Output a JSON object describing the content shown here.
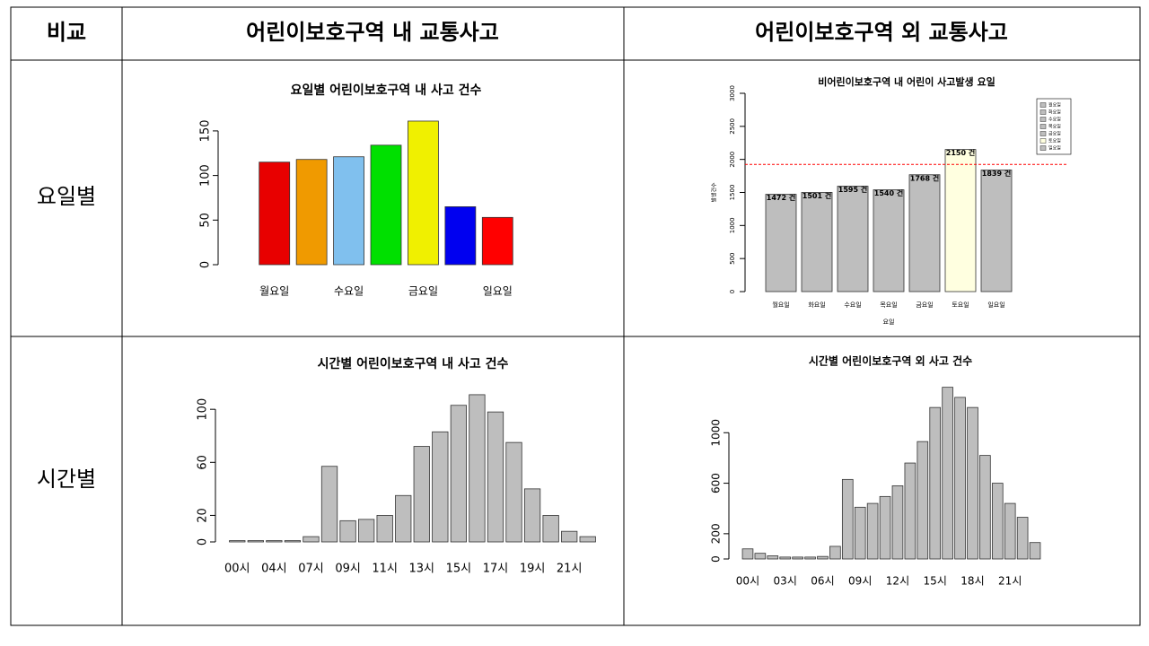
{
  "table": {
    "header": [
      "비교",
      "어린이보호구역 내 교통사고",
      "어린이보호구역 외 교통사고"
    ],
    "rows": [
      "요일별",
      "시간별"
    ]
  },
  "chart_data": [
    {
      "type": "bar",
      "title": "요일별 어린이보호구역 내 사고 건수",
      "categories": [
        "월요일",
        null,
        "수요일",
        null,
        "금요일",
        null,
        "일요일"
      ],
      "values": [
        115,
        118,
        121,
        134,
        161,
        65,
        53
      ],
      "colors": [
        "#e80000",
        "#f09a00",
        "#80c0ee",
        "#00e000",
        "#f0f000",
        "#0000f0",
        "#ff0000"
      ],
      "ylim": [
        0,
        165
      ],
      "yticks": [
        0,
        50,
        100,
        150
      ]
    },
    {
      "type": "bar",
      "title": "비어린이보호구역 내 어린이 사고발생 요일",
      "categories": [
        "월요일",
        "화요일",
        "수요일",
        "목요일",
        "금요일",
        "토요일",
        "일요일"
      ],
      "values": [
        1472,
        1501,
        1595,
        1540,
        1768,
        2150,
        1839
      ],
      "value_labels": [
        "1472 건",
        "1501 건",
        "1595 건",
        "1540 건",
        "1768 건",
        "2150 건",
        "1839 건"
      ],
      "colors": [
        "#bebebe",
        "#bebebe",
        "#bebebe",
        "#bebebe",
        "#bebebe",
        "#ffffe0",
        "#bebebe"
      ],
      "x_label": "요일",
      "y_label": "발생건수",
      "reference_line": {
        "value": 1925,
        "color": "#ff0000"
      },
      "legend": "topright",
      "ylim": [
        0,
        3000
      ],
      "yticks": [
        0,
        500,
        1000,
        1500,
        2000,
        2500,
        3000
      ]
    },
    {
      "type": "bar",
      "title": "시간별 어린이보호구역 내 사고 건수",
      "categories": [
        "00시",
        null,
        "04시",
        null,
        "07시",
        null,
        "09시",
        null,
        "11시",
        null,
        "13시",
        null,
        "15시",
        null,
        "17시",
        null,
        "19시",
        null,
        "21시",
        null
      ],
      "values": [
        1,
        1,
        1,
        1,
        4,
        57,
        16,
        17,
        20,
        35,
        72,
        83,
        103,
        111,
        98,
        75,
        40,
        20,
        8,
        4
      ],
      "color": "#bebebe",
      "ylim": [
        0,
        115
      ],
      "yticks": [
        0,
        20,
        60,
        100
      ]
    },
    {
      "type": "bar",
      "title": "시간별 어린이보호구역 외 사고 건수",
      "categories": [
        "00시",
        null,
        null,
        "03시",
        null,
        null,
        "06시",
        null,
        null,
        "09시",
        null,
        null,
        "12시",
        null,
        null,
        "15시",
        null,
        null,
        "18시",
        null,
        null,
        "21시",
        null,
        null
      ],
      "values": [
        80,
        45,
        25,
        15,
        15,
        15,
        20,
        100,
        630,
        410,
        440,
        495,
        580,
        760,
        930,
        1200,
        1360,
        1280,
        1200,
        820,
        600,
        440,
        330,
        130
      ],
      "color": "#bebebe",
      "ylim": [
        0,
        1400
      ],
      "yticks": [
        0,
        200,
        600,
        1000
      ]
    }
  ]
}
